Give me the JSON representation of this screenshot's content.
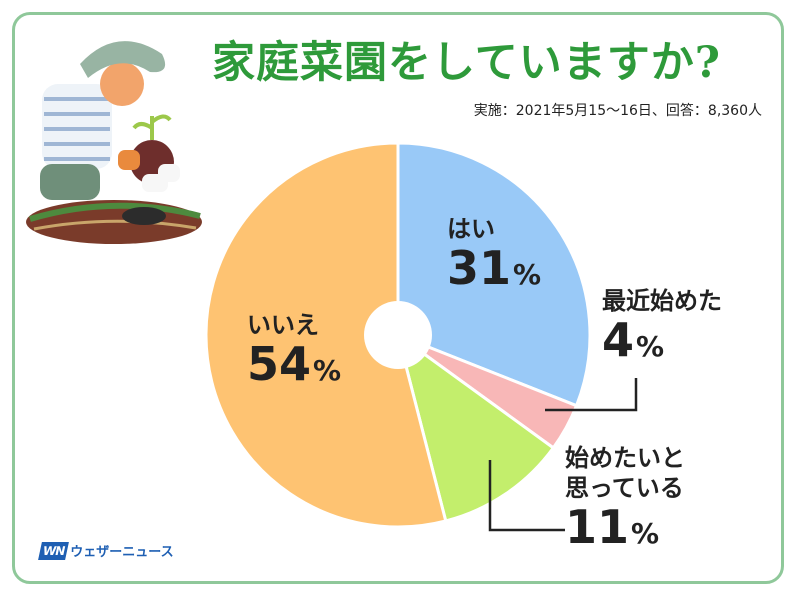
{
  "title": "家庭菜園をしていますか?",
  "subtitle": "実施：2021年5月15～16日、回答：8,360人",
  "brand": "ウェザーニュース",
  "brand_mark": "WN",
  "chart_data": {
    "type": "pie",
    "title": "家庭菜園をしていますか?",
    "donut_hole": true,
    "slices": [
      {
        "label": "はい",
        "label_lines": [
          "はい"
        ],
        "value": 31,
        "color": "#99c9f7"
      },
      {
        "label": "最近始めた",
        "label_lines": [
          "最近始めた"
        ],
        "value": 4,
        "color": "#f8b7b7"
      },
      {
        "label": "始めたいと思っている",
        "label_lines": [
          "始めたいと",
          "思っている"
        ],
        "value": 11,
        "color": "#c3ee6c"
      },
      {
        "label": "いいえ",
        "label_lines": [
          "いいえ"
        ],
        "value": 54,
        "color": "#fec372"
      }
    ],
    "unit": "%"
  }
}
